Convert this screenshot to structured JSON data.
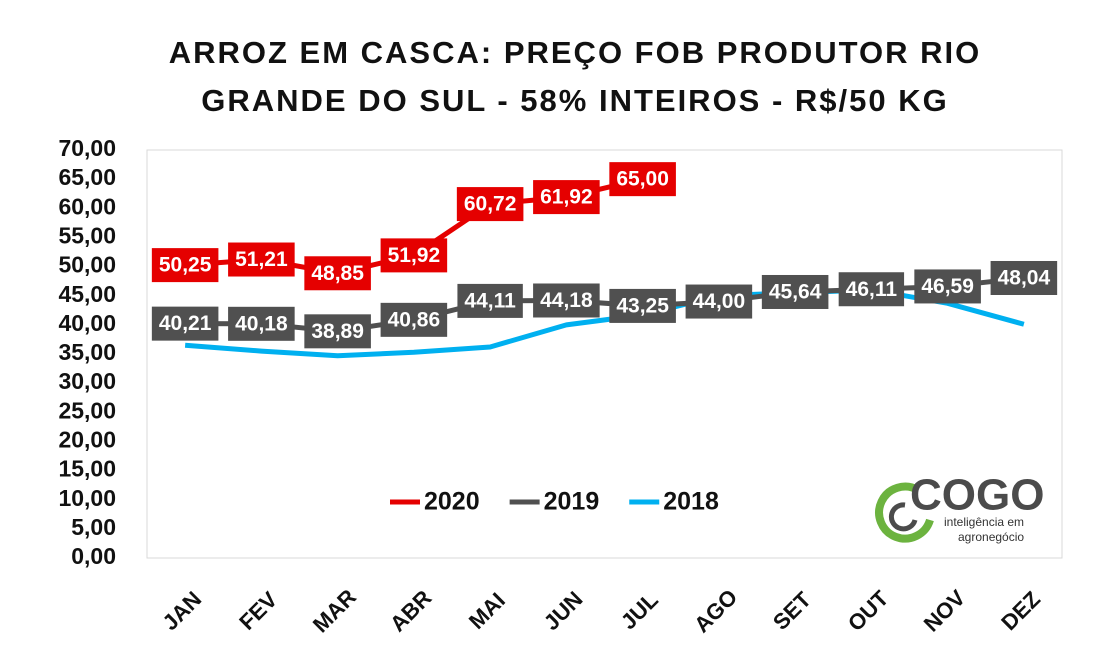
{
  "chart_data": {
    "type": "line",
    "title": [
      "ARROZ EM CASCA: PREÇO FOB PRODUTOR RIO",
      "GRANDE DO SUL - 58% INTEIROS - R$/50 KG"
    ],
    "categories": [
      "JAN",
      "FEV",
      "MAR",
      "ABR",
      "MAI",
      "JUN",
      "JUL",
      "AGO",
      "SET",
      "OUT",
      "NOV",
      "DEZ"
    ],
    "series": [
      {
        "name": "2020",
        "color": "#e50000",
        "values": [
          50.25,
          51.21,
          48.85,
          51.92,
          60.72,
          61.92,
          65.0,
          null,
          null,
          null,
          null,
          null
        ],
        "value_labels": [
          "50,25",
          "51,21",
          "48,85",
          "51,92",
          "60,72",
          "61,92",
          "65,00",
          null,
          null,
          null,
          null,
          null
        ]
      },
      {
        "name": "2019",
        "color": "#505050",
        "values": [
          40.21,
          40.18,
          38.89,
          40.86,
          44.11,
          44.18,
          43.25,
          44.0,
          45.64,
          46.11,
          46.59,
          48.04
        ],
        "value_labels": [
          "40,21",
          "40,18",
          "38,89",
          "40,86",
          "44,11",
          "44,18",
          "43,25",
          "44,00",
          "45,64",
          "46,11",
          "46,59",
          "48,04"
        ]
      },
      {
        "name": "2018",
        "color": "#00b0f0",
        "values": [
          36.5,
          35.5,
          34.7,
          35.3,
          36.2,
          40.0,
          41.7,
          45.0,
          45.5,
          46.0,
          43.7,
          40.1
        ]
      }
    ],
    "ylim": [
      0,
      70
    ],
    "yticks": [
      {
        "value": 0,
        "label": "0,00"
      },
      {
        "value": 5,
        "label": "5,00"
      },
      {
        "value": 10,
        "label": "10,00"
      },
      {
        "value": 15,
        "label": "15,00"
      },
      {
        "value": 20,
        "label": "20,00"
      },
      {
        "value": 25,
        "label": "25,00"
      },
      {
        "value": 30,
        "label": "30,00"
      },
      {
        "value": 35,
        "label": "35,00"
      },
      {
        "value": 40,
        "label": "40,00"
      },
      {
        "value": 45,
        "label": "45,00"
      },
      {
        "value": 50,
        "label": "50,00"
      },
      {
        "value": 55,
        "label": "55,00"
      },
      {
        "value": 60,
        "label": "60,00"
      },
      {
        "value": 65,
        "label": "65,00"
      },
      {
        "value": 70,
        "label": "70,00"
      }
    ],
    "grid": false,
    "legend": "bottom"
  },
  "logo": {
    "name": "COGO",
    "tagline": [
      "inteligência em",
      "agronegócio"
    ]
  }
}
